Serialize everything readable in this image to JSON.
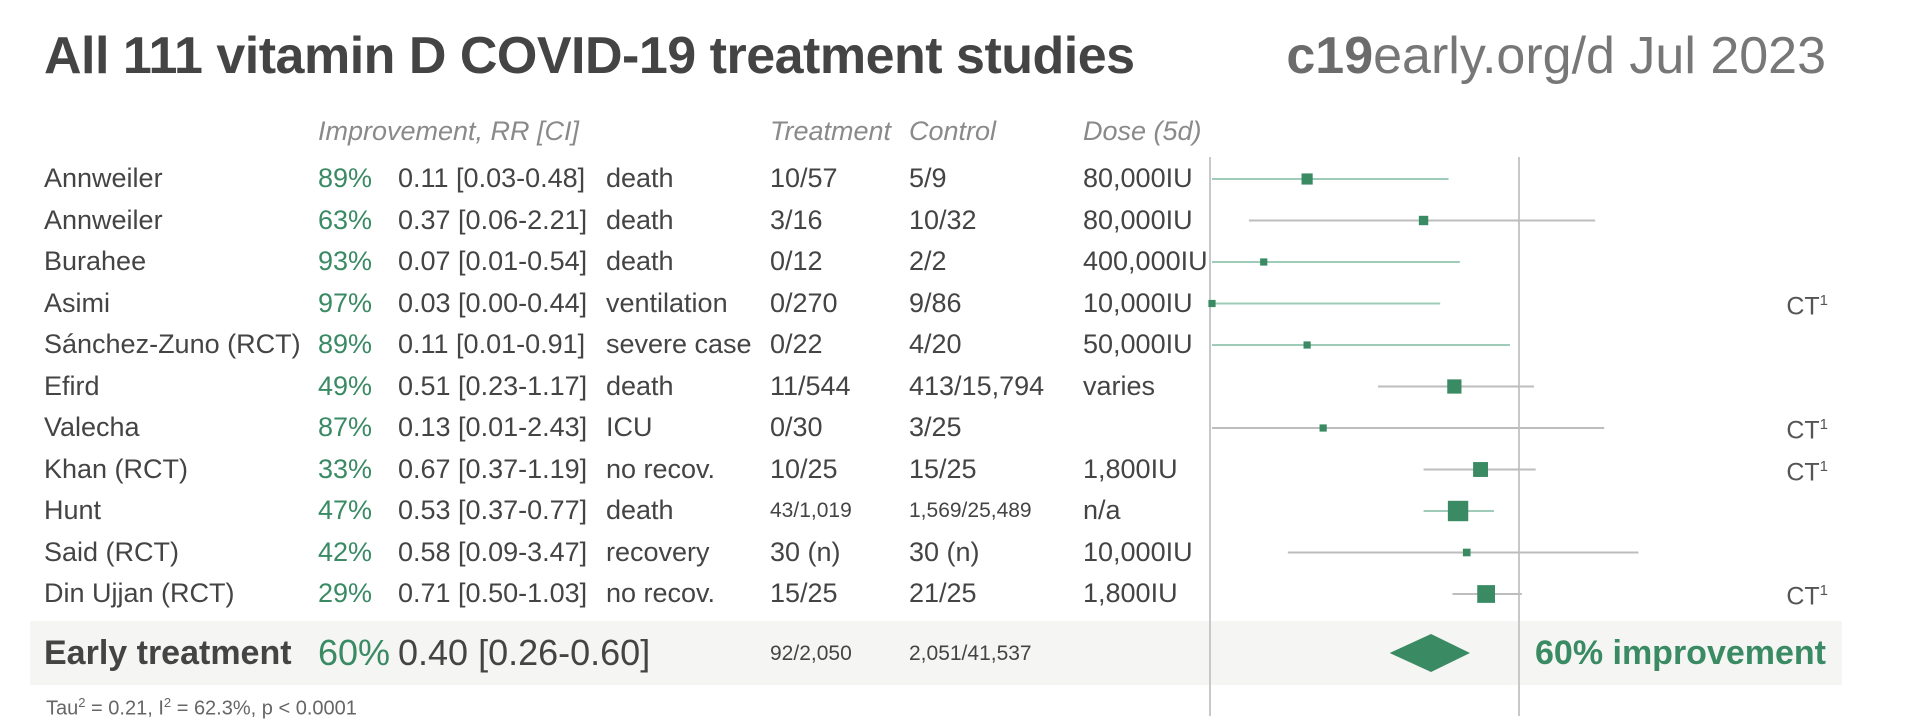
{
  "title": "All 111 vitamin D COVID-19 treatment studies",
  "site_bold": "c19",
  "site_rest": "early.org/d Jul 2023",
  "headers": {
    "improvement": "Improvement, RR [CI]",
    "treatment": "Treatment",
    "control": "Control",
    "dose": "Dose (5d)"
  },
  "colors": {
    "accent": "#3a8a64",
    "ci_light": "#9fccb8",
    "ci_gray": "#bdbdbd",
    "axis": "#c8c8c8",
    "text": "#444444"
  },
  "chart_data": {
    "type": "forest",
    "x_scale": "log",
    "null_line": 1,
    "studies": [
      {
        "name": "Annweiler",
        "improvement": "89%",
        "rr_text": "0.11 [0.03-0.48]",
        "outcome": "death",
        "treatment": "10/57",
        "control": "5/9",
        "dose": "80,000IU",
        "ct": "",
        "rr": 0.11,
        "lo": 0.03,
        "hi": 0.48,
        "weight": 0.28,
        "significant": true
      },
      {
        "name": "Annweiler",
        "improvement": "63%",
        "rr_text": "0.37 [0.06-2.21]",
        "outcome": "death",
        "treatment": "3/16",
        "control": "10/32",
        "dose": "80,000IU",
        "ct": "",
        "rr": 0.37,
        "lo": 0.06,
        "hi": 2.21,
        "weight": 0.2,
        "significant": false
      },
      {
        "name": "Burahee",
        "improvement": "93%",
        "rr_text": "0.07 [0.01-0.54]",
        "outcome": "death",
        "treatment": "0/12",
        "control": "2/2",
        "dose": "400,000IU",
        "ct": "",
        "rr": 0.07,
        "lo": 0.01,
        "hi": 0.54,
        "weight": 0.1,
        "significant": true
      },
      {
        "name": "Asimi",
        "improvement": "97%",
        "rr_text": "0.03 [0.00-0.44]",
        "outcome": "ventilation",
        "treatment": "0/270",
        "control": "9/86",
        "dose": "10,000IU",
        "ct": "CT",
        "rr": 0.03,
        "lo": 0.004,
        "hi": 0.44,
        "weight": 0.1,
        "significant": true
      },
      {
        "name": "Sánchez-Zuno (RCT)",
        "improvement": "89%",
        "rr_text": "0.11 [0.01-0.91]",
        "outcome": "severe case",
        "treatment": "0/22",
        "control": "4/20",
        "dose": "50,000IU",
        "ct": "",
        "rr": 0.11,
        "lo": 0.01,
        "hi": 0.91,
        "weight": 0.1,
        "significant": true
      },
      {
        "name": "Efird",
        "improvement": "49%",
        "rr_text": "0.51 [0.23-1.17]",
        "outcome": "death",
        "treatment": "11/544",
        "control": "413/15,794",
        "dose": "varies",
        "ct": "",
        "rr": 0.51,
        "lo": 0.23,
        "hi": 1.17,
        "weight": 0.42,
        "significant": false
      },
      {
        "name": "Valecha",
        "improvement": "87%",
        "rr_text": "0.13 [0.01-2.43]",
        "outcome": "ICU",
        "treatment": "0/30",
        "control": "3/25",
        "dose": "",
        "ct": "CT",
        "rr": 0.13,
        "lo": 0.01,
        "hi": 2.43,
        "weight": 0.1,
        "significant": false
      },
      {
        "name": "Khan (RCT)",
        "improvement": "33%",
        "rr_text": "0.67 [0.37-1.19]",
        "outcome": "no recov.",
        "treatment": "10/25",
        "control": "15/25",
        "dose": "1,800IU",
        "ct": "CT",
        "rr": 0.67,
        "lo": 0.37,
        "hi": 1.19,
        "weight": 0.45,
        "significant": false
      },
      {
        "name": "Hunt",
        "improvement": "47%",
        "rr_text": "0.53 [0.37-0.77]",
        "outcome": "death",
        "treatment": "43/1,019",
        "control": "1,569/25,489",
        "dose": "n/a",
        "ct": "",
        "rr": 0.53,
        "lo": 0.37,
        "hi": 0.77,
        "weight": 0.7,
        "significant": true,
        "small_counts": true
      },
      {
        "name": "Said (RCT)",
        "improvement": "42%",
        "rr_text": "0.58 [0.09-3.47]",
        "outcome": "recovery",
        "treatment": "30 (n)",
        "control": "30 (n)",
        "dose": "10,000IU",
        "ct": "",
        "rr": 0.58,
        "lo": 0.09,
        "hi": 3.47,
        "weight": 0.12,
        "significant": false
      },
      {
        "name": "Din Ujjan (RCT)",
        "improvement": "29%",
        "rr_text": "0.71 [0.50-1.03]",
        "outcome": "no recov.",
        "treatment": "15/25",
        "control": "21/25",
        "dose": "1,800IU",
        "ct": "CT",
        "rr": 0.71,
        "lo": 0.5,
        "hi": 1.03,
        "weight": 0.58,
        "significant": false
      }
    ],
    "summary": {
      "name": "Early treatment",
      "improvement": "60%",
      "rr_text": "0.40 [0.26-0.60]",
      "treatment": "92/2,050",
      "control": "2,051/41,537",
      "improvement_text": "60% improvement",
      "rr": 0.4,
      "lo": 0.26,
      "hi": 0.6
    },
    "stats": {
      "tau_label": "Tau",
      "tau2": "0.21",
      "i_label": "I",
      "i2": "62.3%",
      "p": "p < 0.0001"
    }
  }
}
